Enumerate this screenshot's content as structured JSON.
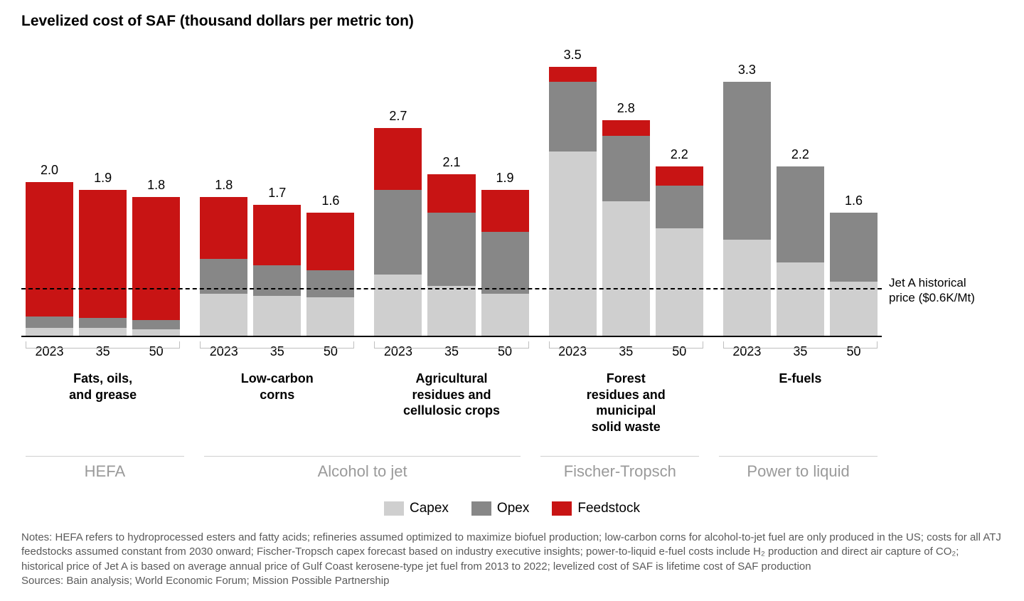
{
  "title": "Levelized cost of SAF (thousand dollars per metric ton)",
  "y_max": 3.7,
  "refline": {
    "value": 0.6,
    "label_l1": "Jet A historical",
    "label_l2": "price ($0.6K/Mt)"
  },
  "colors": {
    "capex": "#cfcfcf",
    "opex": "#878787",
    "feedstock": "#c81414",
    "bg": "#ffffff"
  },
  "legend": [
    {
      "key": "capex",
      "label": "Capex"
    },
    {
      "key": "opex",
      "label": "Opex"
    },
    {
      "key": "feedstock",
      "label": "Feedstock"
    }
  ],
  "pathways": [
    {
      "label": "HEFA",
      "span": 1
    },
    {
      "label": "Alcohol to jet",
      "span": 2
    },
    {
      "label": "Fischer-Tropsch",
      "span": 1
    },
    {
      "label": "Power to liquid",
      "span": 1
    }
  ],
  "groups": [
    {
      "feedstock_label": "Fats, oils,\nand grease",
      "bars": [
        {
          "year": "2023",
          "total": "2.0",
          "capex": 0.1,
          "opex": 0.15,
          "feedstock": 1.75
        },
        {
          "year": "35",
          "total": "1.9",
          "capex": 0.1,
          "opex": 0.13,
          "feedstock": 1.67
        },
        {
          "year": "50",
          "total": "1.8",
          "capex": 0.08,
          "opex": 0.12,
          "feedstock": 1.6
        }
      ]
    },
    {
      "feedstock_label": "Low-carbon\ncorns",
      "bars": [
        {
          "year": "2023",
          "total": "1.8",
          "capex": 0.55,
          "opex": 0.45,
          "feedstock": 0.8
        },
        {
          "year": "35",
          "total": "1.7",
          "capex": 0.52,
          "opex": 0.4,
          "feedstock": 0.78
        },
        {
          "year": "50",
          "total": "1.6",
          "capex": 0.5,
          "opex": 0.35,
          "feedstock": 0.75
        }
      ]
    },
    {
      "feedstock_label": "Agricultural\nresidues and\ncellulosic crops",
      "bars": [
        {
          "year": "2023",
          "total": "2.7",
          "capex": 0.8,
          "opex": 1.1,
          "feedstock": 0.8
        },
        {
          "year": "35",
          "total": "2.1",
          "capex": 0.65,
          "opex": 0.95,
          "feedstock": 0.5
        },
        {
          "year": "50",
          "total": "1.9",
          "capex": 0.55,
          "opex": 0.8,
          "feedstock": 0.55
        }
      ]
    },
    {
      "feedstock_label": "Forest\nresidues and\nmunicipal\nsolid waste",
      "bars": [
        {
          "year": "2023",
          "total": "3.5",
          "capex": 2.4,
          "opex": 0.9,
          "feedstock": 0.2
        },
        {
          "year": "35",
          "total": "2.8",
          "capex": 1.75,
          "opex": 0.85,
          "feedstock": 0.2
        },
        {
          "year": "50",
          "total": "2.2",
          "capex": 1.4,
          "opex": 0.55,
          "feedstock": 0.25
        }
      ]
    },
    {
      "feedstock_label": "E-fuels",
      "bars": [
        {
          "year": "2023",
          "total": "3.3",
          "capex": 1.25,
          "opex": 2.05,
          "feedstock": 0.0
        },
        {
          "year": "35",
          "total": "2.2",
          "capex": 0.95,
          "opex": 1.25,
          "feedstock": 0.0
        },
        {
          "year": "50",
          "total": "1.6",
          "capex": 0.7,
          "opex": 0.9,
          "feedstock": 0.0
        }
      ]
    }
  ],
  "notes": "Notes: HEFA refers to hydroprocessed esters and fatty acids; refineries assumed optimized to maximize biofuel production; low-carbon corns for alcohol-to-jet fuel are only produced in the US; costs for all ATJ feedstocks assumed constant from 2030 onward; Fischer-Tropsch capex forecast based on industry executive insights; power-to-liquid e-fuel costs include H₂ production and direct air capture of CO₂; historical price of Jet A is based on average annual price of Gulf Coast kerosene-type jet fuel from 2013 to 2022; levelized cost of SAF is lifetime cost of SAF production",
  "sources": "Sources: Bain analysis; World Economic Forum; Mission Possible Partnership"
}
